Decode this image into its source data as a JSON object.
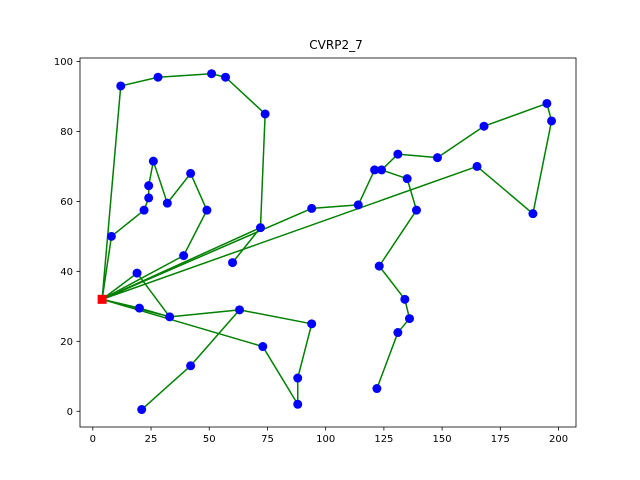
{
  "chart_data": {
    "type": "line",
    "title": "CVRP2_7",
    "xlabel": "",
    "ylabel": "",
    "xlim": [
      -5.5,
      207.5
    ],
    "ylim": [
      -4.5,
      101
    ],
    "xticks": [
      0,
      25,
      50,
      75,
      100,
      125,
      150,
      175,
      200
    ],
    "yticks": [
      0,
      20,
      40,
      60,
      80,
      100
    ],
    "grid": false,
    "colors": {
      "route": "#008000",
      "customer": "#0000ff",
      "depot": "#ff0000"
    },
    "depot": {
      "x": 4,
      "y": 32
    },
    "routes": [
      {
        "x": [
          4,
          8,
          22,
          24,
          24,
          26,
          32,
          42,
          49,
          39,
          4
        ],
        "y": [
          32,
          50,
          57.5,
          61,
          64.5,
          71.5,
          59.5,
          68,
          57.5,
          44.5,
          32
        ]
      },
      {
        "x": [
          4,
          12,
          28,
          51,
          57,
          74,
          72,
          4
        ],
        "y": [
          32,
          93,
          95.5,
          96.5,
          95.5,
          85,
          52.5,
          32
        ]
      },
      {
        "x": [
          4,
          20,
          33,
          4
        ],
        "y": [
          32,
          29.5,
          27,
          32
        ]
      },
      {
        "x": [
          4,
          19,
          33,
          63,
          42,
          21
        ],
        "y": [
          32,
          39.5,
          27,
          29,
          13,
          0.5
        ]
      },
      {
        "x": [
          4,
          73,
          88,
          88,
          94,
          63
        ],
        "y": [
          32,
          18.5,
          2,
          9.5,
          25,
          29
        ]
      },
      {
        "x": [
          4,
          94,
          114,
          121,
          124,
          131,
          148,
          168,
          195,
          197,
          189,
          165,
          4
        ],
        "y": [
          32,
          58,
          59,
          69,
          69,
          73.5,
          72.5,
          81.5,
          88,
          83,
          56.5,
          70,
          32
        ]
      },
      {
        "x": [
          60,
          72
        ],
        "y": [
          42.5,
          52.5
        ]
      },
      {
        "x": [
          124,
          135,
          139,
          123,
          134,
          136,
          131,
          122
        ],
        "y": [
          69,
          66.5,
          57.5,
          41.5,
          32,
          26.5,
          22.5,
          6.5
        ]
      }
    ]
  }
}
